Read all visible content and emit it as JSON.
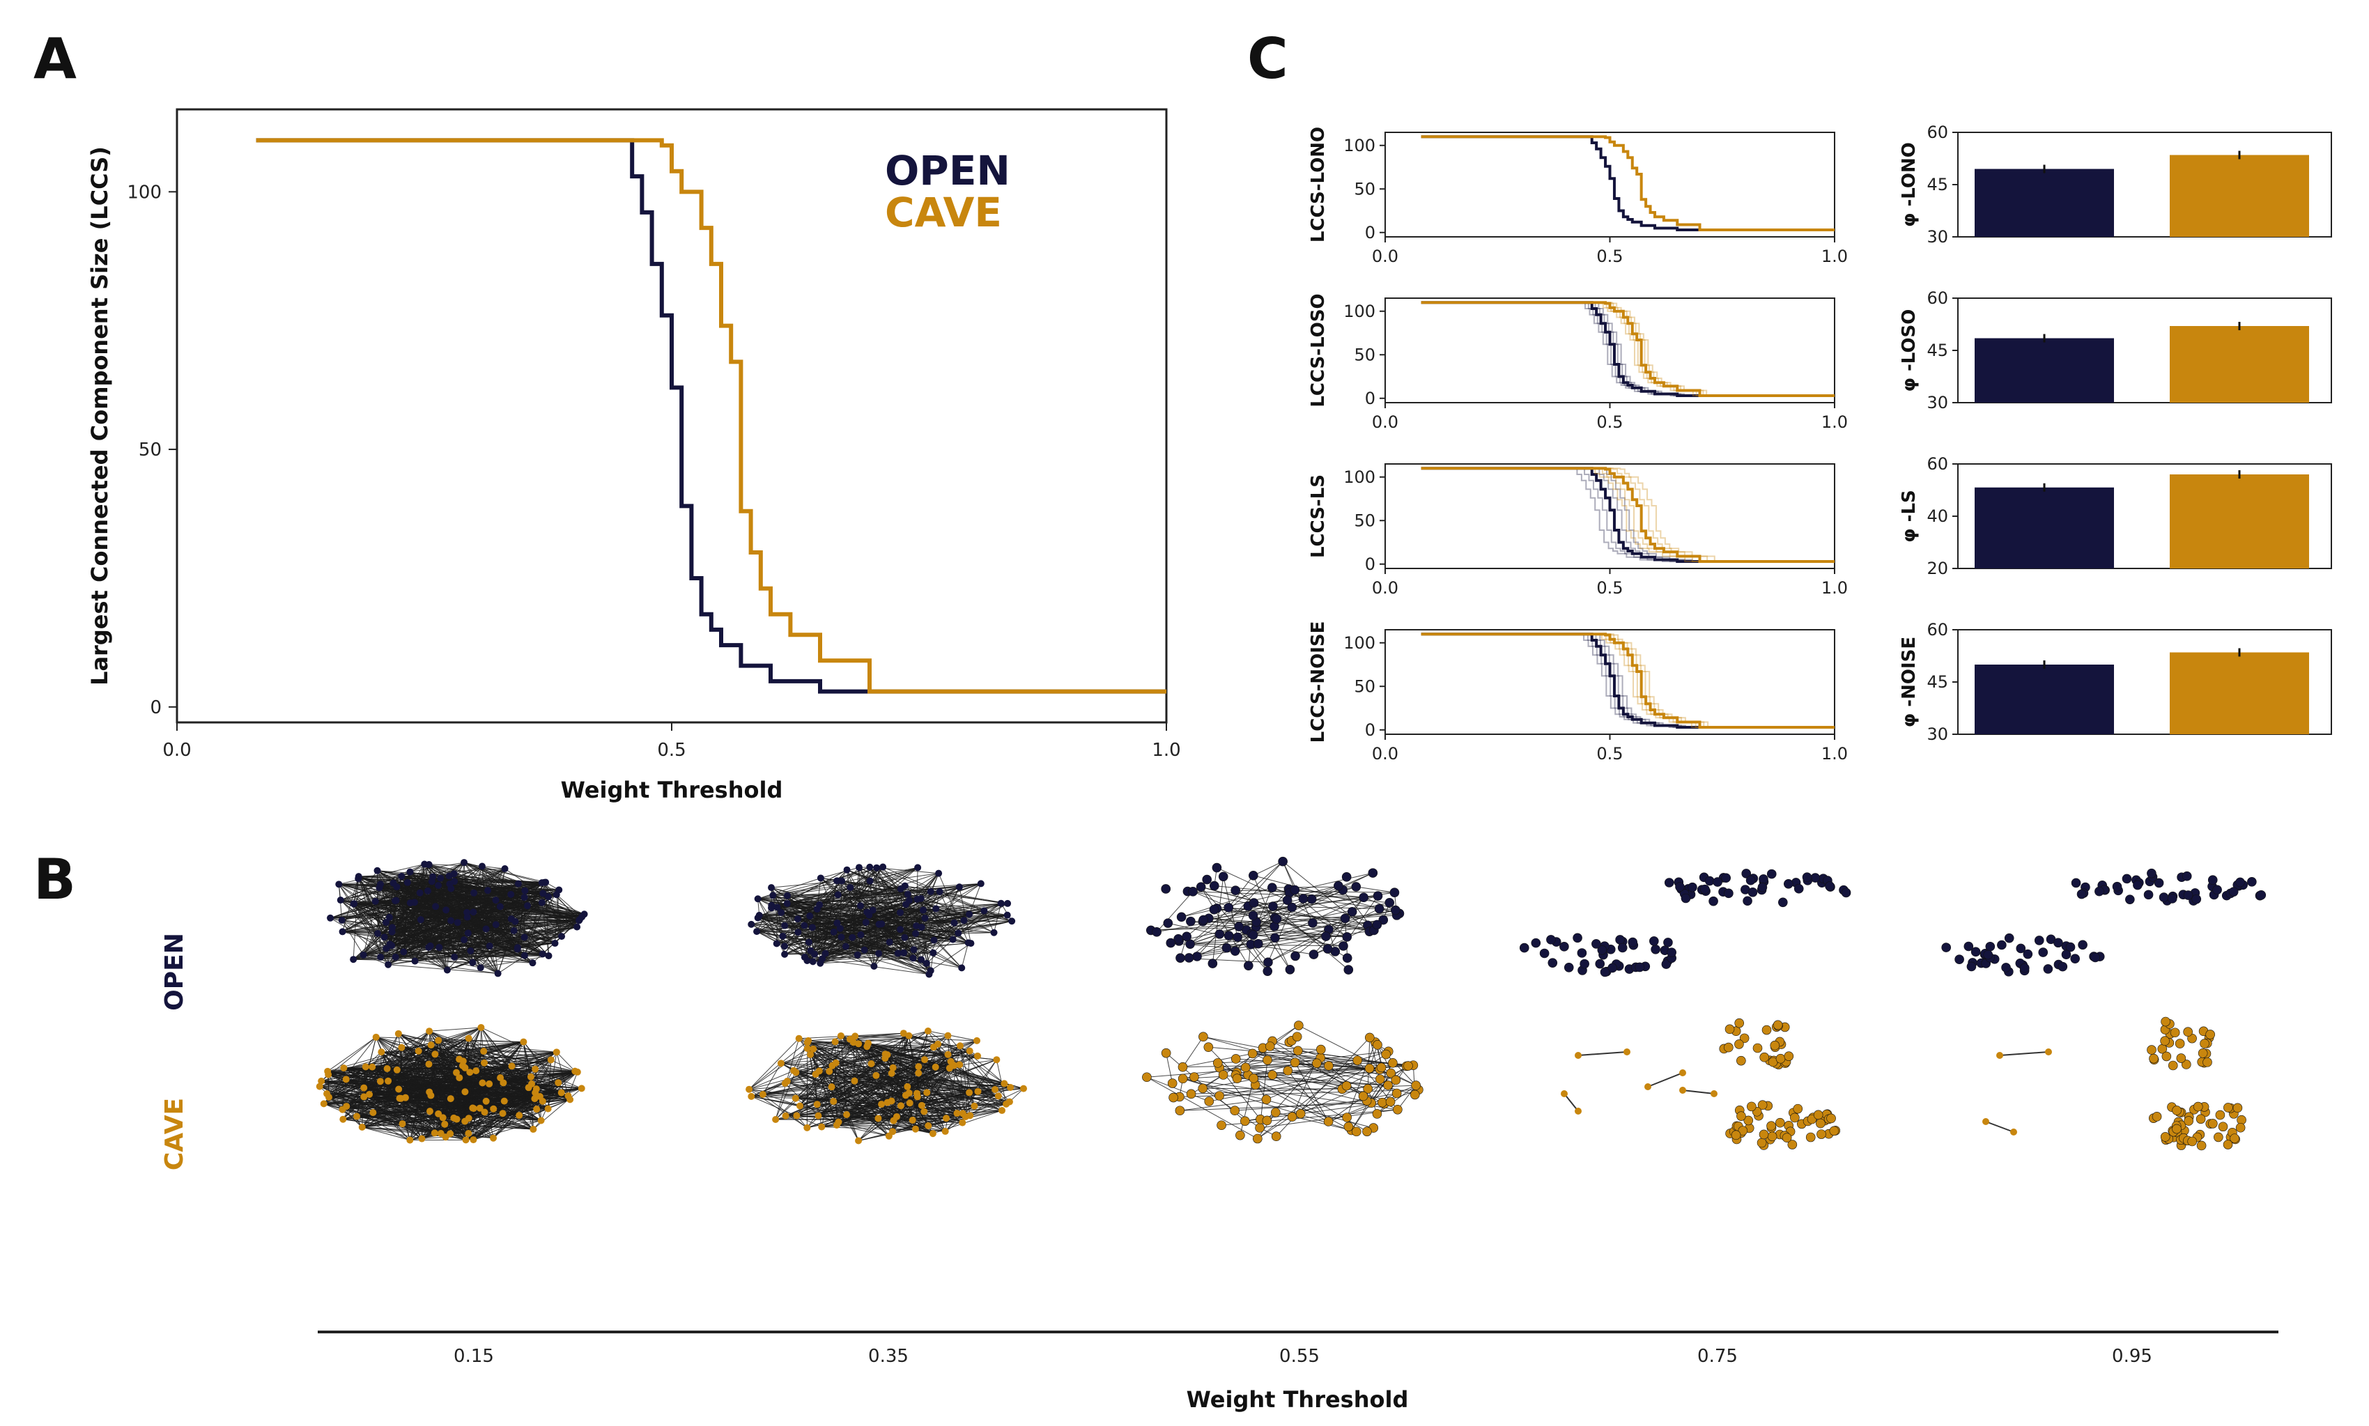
{
  "colors": {
    "open": "#14143c",
    "cave": "#c8860e",
    "axis": "#222222"
  },
  "panels": {
    "a": "A",
    "b": "B",
    "c": "C"
  },
  "chart_data": [
    {
      "id": "A",
      "type": "line",
      "xlabel": "Weight Threshold",
      "ylabel": "Largest Connected Component Size (LCCS)",
      "xlim": [
        0.0,
        1.0
      ],
      "ylim": [
        -3,
        116
      ],
      "xticks": [
        "0.0",
        "0.5",
        "1.0"
      ],
      "yticks": [
        "0",
        "50",
        "100"
      ],
      "series": [
        {
          "name": "OPEN",
          "x": [
            0.08,
            0.45,
            0.46,
            0.47,
            0.48,
            0.49,
            0.5,
            0.51,
            0.52,
            0.53,
            0.54,
            0.55,
            0.57,
            0.6,
            0.65,
            0.68,
            1.0
          ],
          "y": [
            110,
            110,
            103,
            96,
            86,
            76,
            62,
            39,
            25,
            18,
            15,
            12,
            8,
            5,
            3,
            3,
            3
          ]
        },
        {
          "name": "CAVE",
          "x": [
            0.08,
            0.46,
            0.49,
            0.5,
            0.51,
            0.53,
            0.54,
            0.55,
            0.56,
            0.57,
            0.58,
            0.59,
            0.6,
            0.62,
            0.65,
            0.7,
            1.0
          ],
          "y": [
            110,
            110,
            109,
            104,
            100,
            93,
            86,
            74,
            67,
            38,
            30,
            23,
            18,
            14,
            9,
            3,
            3
          ]
        }
      ],
      "legend": {
        "position": "top-right",
        "entries": [
          "OPEN",
          "CAVE"
        ]
      }
    },
    {
      "id": "C-lines",
      "type": "line",
      "xlim": [
        0.0,
        1.0
      ],
      "ylim": [
        -5,
        115
      ],
      "xticks": [
        "0.0",
        "0.5",
        "1.0"
      ],
      "yticks": [
        "0",
        "50",
        "100"
      ],
      "rows": [
        {
          "ylabel": "LCCS-LONO"
        },
        {
          "ylabel": "LCCS-LOSO"
        },
        {
          "ylabel": "LCCS-LS"
        },
        {
          "ylabel": "LCCS-NOISE"
        }
      ]
    },
    {
      "id": "C-bars",
      "type": "bar",
      "categories": [
        "OPEN",
        "CAVE"
      ],
      "rows": [
        {
          "ylabel": "φ -LONO",
          "ylim": [
            30,
            60
          ],
          "yticks": [
            "30",
            "45",
            "60"
          ],
          "values": [
            49.5,
            53.5
          ]
        },
        {
          "ylabel": "φ -LOSO",
          "ylim": [
            30,
            60
          ],
          "yticks": [
            "30",
            "45",
            "60"
          ],
          "values": [
            48.5,
            52.0
          ]
        },
        {
          "ylabel": "φ -LS",
          "ylim": [
            20,
            60
          ],
          "yticks": [
            "20",
            "40",
            "60"
          ],
          "values": [
            51.0,
            56.0
          ]
        },
        {
          "ylabel": "φ -NOISE",
          "ylim": [
            30,
            60
          ],
          "yticks": [
            "30",
            "45",
            "60"
          ],
          "values": [
            50.0,
            53.5
          ]
        }
      ]
    },
    {
      "id": "B",
      "type": "network",
      "xlabel": "Weight Threshold",
      "thresholds": [
        "0.15",
        "0.35",
        "0.55",
        "0.75",
        "0.95"
      ],
      "rows": [
        "OPEN",
        "CAVE"
      ]
    }
  ]
}
